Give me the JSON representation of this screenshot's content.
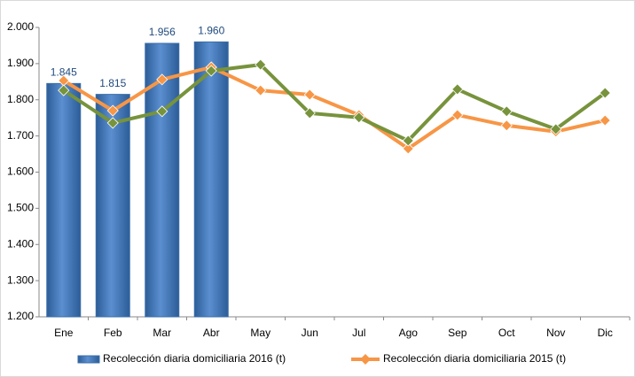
{
  "chart_data": {
    "type": "bar",
    "categories": [
      "Ene",
      "Feb",
      "Mar",
      "Abr",
      "May",
      "Jun",
      "Jul",
      "Ago",
      "Sep",
      "Oct",
      "Nov",
      "Dic"
    ],
    "series": [
      {
        "name": "Recolección diaria domiciliaria 2016 (t)",
        "type": "bar",
        "color": "#4f81bd",
        "values": [
          1845,
          1815,
          1956,
          1960,
          null,
          null,
          null,
          null,
          null,
          null,
          null,
          null
        ],
        "value_labels": [
          "1.845",
          "1.815",
          "1.956",
          "1.960",
          null,
          null,
          null,
          null,
          null,
          null,
          null,
          null
        ]
      },
      {
        "name": "Recolección diaria domiciliaria 2015 (t)",
        "type": "line",
        "color": "#f79646",
        "values": [
          1853,
          1770,
          1856,
          1890,
          1826,
          1814,
          1758,
          1665,
          1758,
          1729,
          1712,
          1743
        ]
      },
      {
        "type": "line",
        "color": "#77933c",
        "values": [
          1826,
          1736,
          1768,
          1880,
          1897,
          1763,
          1751,
          1687,
          1829,
          1768,
          1719,
          1819
        ]
      }
    ],
    "ylim": [
      1200,
      2000
    ],
    "yticks": [
      {
        "value": 1200,
        "label": "1.200"
      },
      {
        "value": 1300,
        "label": "1.300"
      },
      {
        "value": 1400,
        "label": "1.400"
      },
      {
        "value": 1500,
        "label": "1.500"
      },
      {
        "value": 1600,
        "label": "1.600"
      },
      {
        "value": 1700,
        "label": "1.700"
      },
      {
        "value": 1800,
        "label": "1.800"
      },
      {
        "value": 1900,
        "label": "1.900"
      },
      {
        "value": 2000,
        "label": "2.000"
      }
    ],
    "legend": "bottom"
  }
}
